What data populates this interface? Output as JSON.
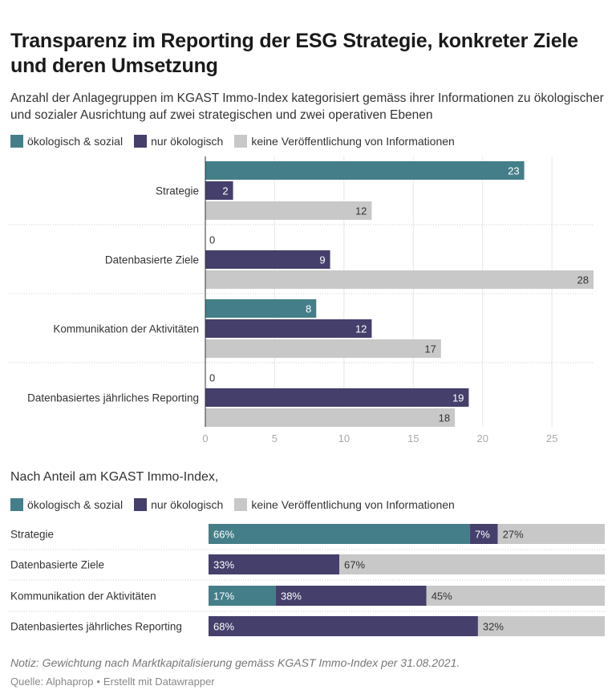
{
  "title": "Transparenz im Reporting der ESG Strategie, konkreter Ziele und deren Umsetzung",
  "subtitle": "Anzahl der Anlagegruppen im KGAST Immo-Index kategorisiert gemäss ihrer Informationen zu ökologischer und sozialer Ausrichtung auf zwei strategischen und zwei operativen Ebenen",
  "legend": [
    {
      "label": "ökologisch & sozial",
      "color": "#447f89"
    },
    {
      "label": "nur ökologisch",
      "color": "#443f6b"
    },
    {
      "label": "keine Veröffentlichung von Informationen",
      "color": "#c8c8c8"
    }
  ],
  "section2_title": "Nach Anteil am KGAST Immo-Index,",
  "notes": "Notiz: Gewichtung nach Marktkapitalisierung gemäss KGAST Immo-Index per 31.08.2021.",
  "source": {
    "label": "Quelle: Alphaprop",
    "separator": "•",
    "credit": "Erstellt mit Datawrapper"
  },
  "chart_data": [
    {
      "type": "bar",
      "orientation": "horizontal",
      "grouping": "grouped",
      "categories": [
        "Strategie",
        "Datenbasierte Ziele",
        "Kommunikation der Aktivitäten",
        "Datenbasiertes jährliches Reporting"
      ],
      "series": [
        {
          "name": "ökologisch & sozial",
          "color": "#447f89",
          "values": [
            23,
            0,
            8,
            0
          ]
        },
        {
          "name": "nur ökologisch",
          "color": "#443f6b",
          "values": [
            2,
            9,
            12,
            19
          ]
        },
        {
          "name": "keine Veröffentlichung von Informationen",
          "color": "#c8c8c8",
          "values": [
            12,
            28,
            17,
            18
          ]
        }
      ],
      "xlim": [
        0,
        28
      ],
      "xticks": [
        0,
        5,
        10,
        15,
        20,
        25
      ],
      "grid": true
    },
    {
      "type": "bar",
      "orientation": "horizontal",
      "grouping": "stacked-100",
      "unit": "%",
      "categories": [
        "Strategie",
        "Datenbasierte Ziele",
        "Kommunikation der Aktivitäten",
        "Datenbasiertes jährliches Reporting"
      ],
      "series": [
        {
          "name": "ökologisch & sozial",
          "color": "#447f89",
          "values": [
            66,
            0,
            17,
            0
          ]
        },
        {
          "name": "nur ökologisch",
          "color": "#443f6b",
          "values": [
            7,
            33,
            38,
            68
          ]
        },
        {
          "name": "keine Veröffentlichung von Informationen",
          "color": "#c8c8c8",
          "values": [
            27,
            67,
            45,
            32
          ]
        }
      ],
      "xlim": [
        0,
        100
      ]
    }
  ]
}
